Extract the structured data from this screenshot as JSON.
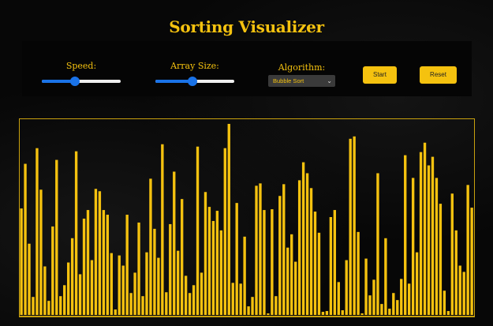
{
  "title": "Sorting Visualizer",
  "controls": {
    "speed": {
      "label": "Speed:",
      "value": 0.42
    },
    "array_size": {
      "label": "Array Size:",
      "value": 0.47
    },
    "algorithm": {
      "label": "Algorithm:",
      "selected": "Bubble Sort"
    },
    "start_label": "Start",
    "reset_label": "Reset"
  },
  "colors": {
    "accent": "#f5c20f",
    "background": "#070707",
    "slider": "#1a73e8"
  },
  "chart_data": {
    "type": "bar",
    "ylim": [
      0,
      250
    ],
    "values": [
      136,
      193,
      91,
      23,
      213,
      160,
      62,
      18,
      113,
      198,
      24,
      38,
      67,
      98,
      209,
      52,
      123,
      134,
      70,
      161,
      158,
      134,
      128,
      79,
      7,
      76,
      63,
      128,
      28,
      54,
      118,
      24,
      80,
      174,
      110,
      73,
      218,
      29,
      116,
      183,
      82,
      148,
      50,
      28,
      38,
      215,
      54,
      157,
      138,
      120,
      133,
      108,
      213,
      244,
      41,
      143,
      40,
      100,
      11,
      23,
      165,
      168,
      134,
      2,
      135,
      24,
      152,
      167,
      86,
      103,
      68,
      172,
      195,
      181,
      162,
      132,
      105,
      4,
      5,
      125,
      134,
      42,
      6,
      70,
      225,
      228,
      106,
      2,
      72,
      25,
      45,
      181,
      14,
      98,
      8,
      28,
      19,
      46,
      204,
      40,
      175,
      80,
      208,
      220,
      191,
      202,
      175,
      142,
      31,
      5,
      155,
      108,
      63,
      55,
      166,
      137
    ]
  }
}
